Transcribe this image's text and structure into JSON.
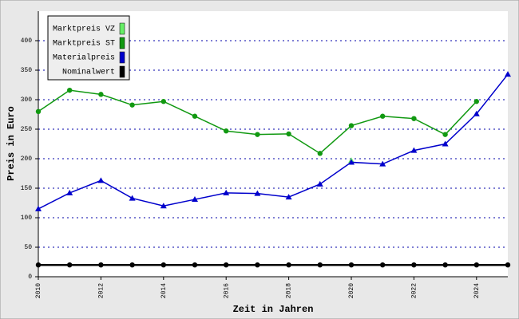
{
  "chart_data": {
    "type": "line",
    "x": [
      2010,
      2011,
      2012,
      2013,
      2014,
      2015,
      2016,
      2017,
      2018,
      2019,
      2020,
      2021,
      2022,
      2023,
      2024,
      2025
    ],
    "series": [
      {
        "name": "Marktpreis VZ",
        "color": "#66ee66",
        "marker": "triangle",
        "values": [
          null,
          null,
          null,
          null,
          null,
          null,
          null,
          null,
          null,
          null,
          197,
          null,
          null,
          null,
          null,
          null
        ]
      },
      {
        "name": "Marktpreis ST",
        "color": "#119911",
        "marker": "circle",
        "values": [
          280,
          316,
          309,
          291,
          297,
          272,
          247,
          241,
          242,
          209,
          256,
          272,
          268,
          241,
          297,
          null
        ]
      },
      {
        "name": "Materialpreis",
        "color": "#0000cc",
        "marker": "triangle",
        "values": [
          115,
          142,
          163,
          133,
          120,
          131,
          142,
          141,
          135,
          157,
          194,
          191,
          214,
          225,
          276,
          343
        ]
      },
      {
        "name": "Nominalwert",
        "color": "#000000",
        "marker": "circle",
        "values": [
          20,
          20,
          20,
          20,
          20,
          20,
          20,
          20,
          20,
          20,
          20,
          20,
          20,
          20,
          20,
          20
        ]
      }
    ],
    "xlabel": "Zeit in Jahren",
    "ylabel": "Preis in Euro",
    "xlim": [
      2010,
      2025
    ],
    "xticks": [
      2010,
      2012,
      2014,
      2016,
      2018,
      2020,
      2022,
      2024
    ],
    "ylim": [
      0,
      450
    ],
    "yticks": [
      0,
      50,
      100,
      150,
      200,
      250,
      300,
      350,
      400
    ],
    "grid": true,
    "legend": "top-left"
  }
}
